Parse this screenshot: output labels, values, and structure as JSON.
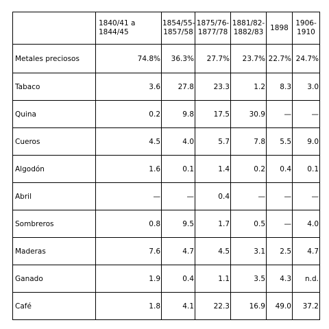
{
  "table": {
    "headers": [
      "",
      "1840/41 a\n1844/45",
      "1854/55-\n1857/58",
      "1875/76-\n1877/78",
      "1881/82-\n1882/83",
      "1898",
      "1906-\n1910"
    ],
    "rows": [
      {
        "label": "Metales preciosos",
        "values": [
          "74.8%",
          "36.3%",
          "27.7%",
          "23.7%",
          "22.7%",
          "24.7%"
        ]
      },
      {
        "label": "Tabaco",
        "values": [
          "3.6",
          "27.8",
          "23.3",
          "1.2",
          "8.3",
          "3.0"
        ]
      },
      {
        "label": "Quina",
        "values": [
          "0.2",
          "9.8",
          "17.5",
          "30.9",
          "—",
          "—"
        ]
      },
      {
        "label": "Cueros",
        "values": [
          "4.5",
          "4.0",
          "5.7",
          "7.8",
          "5.5",
          "9.0"
        ]
      },
      {
        "label": "Algodón",
        "values": [
          "1.6",
          "0.1",
          "1.4",
          "0.2",
          "0.4",
          "0.1"
        ]
      },
      {
        "label": "Abril",
        "values": [
          "—",
          "—",
          "0.4",
          "—",
          "—",
          "—"
        ]
      },
      {
        "label": "Sombreros",
        "values": [
          "0.8",
          "9.5",
          "1.7",
          "0.5",
          "—",
          "4.0"
        ]
      },
      {
        "label": "Maderas",
        "values": [
          "7.6",
          "4.7",
          "4.5",
          "3.1",
          "2.5",
          "4.7"
        ]
      },
      {
        "label": "Ganado",
        "values": [
          "1.9",
          "0.4",
          "1.1",
          "3.5",
          "4.3",
          "n.d."
        ]
      },
      {
        "label": "Café",
        "values": [
          "1.8",
          "4.1",
          "22.3",
          "16.9",
          "49.0",
          "37.2"
        ]
      }
    ]
  }
}
